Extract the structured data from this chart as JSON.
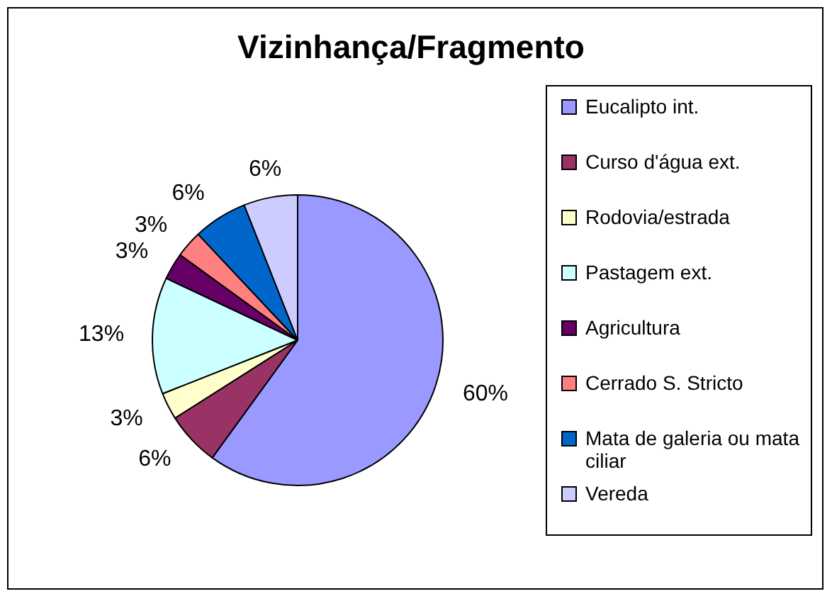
{
  "chart_data": {
    "type": "pie",
    "title": "Vizinhança/Fragmento",
    "categories": [
      "Eucalipto int.",
      "Curso d'água ext.",
      "Rodovia/estrada",
      "Pastagem ext.",
      "Agricultura",
      "Cerrado S. Stricto",
      "Mata de galeria ou mata ciliar",
      "Vereda"
    ],
    "values": [
      60,
      6,
      3,
      13,
      3,
      3,
      6,
      6
    ],
    "value_labels": [
      "60%",
      "6%",
      "3%",
      "13%",
      "3%",
      "3%",
      "6%",
      "6%"
    ],
    "colors": [
      "#9999ff",
      "#993366",
      "#ffffcc",
      "#ccffff",
      "#660066",
      "#ff8080",
      "#0066cc",
      "#ccccff"
    ],
    "legend": "right"
  }
}
